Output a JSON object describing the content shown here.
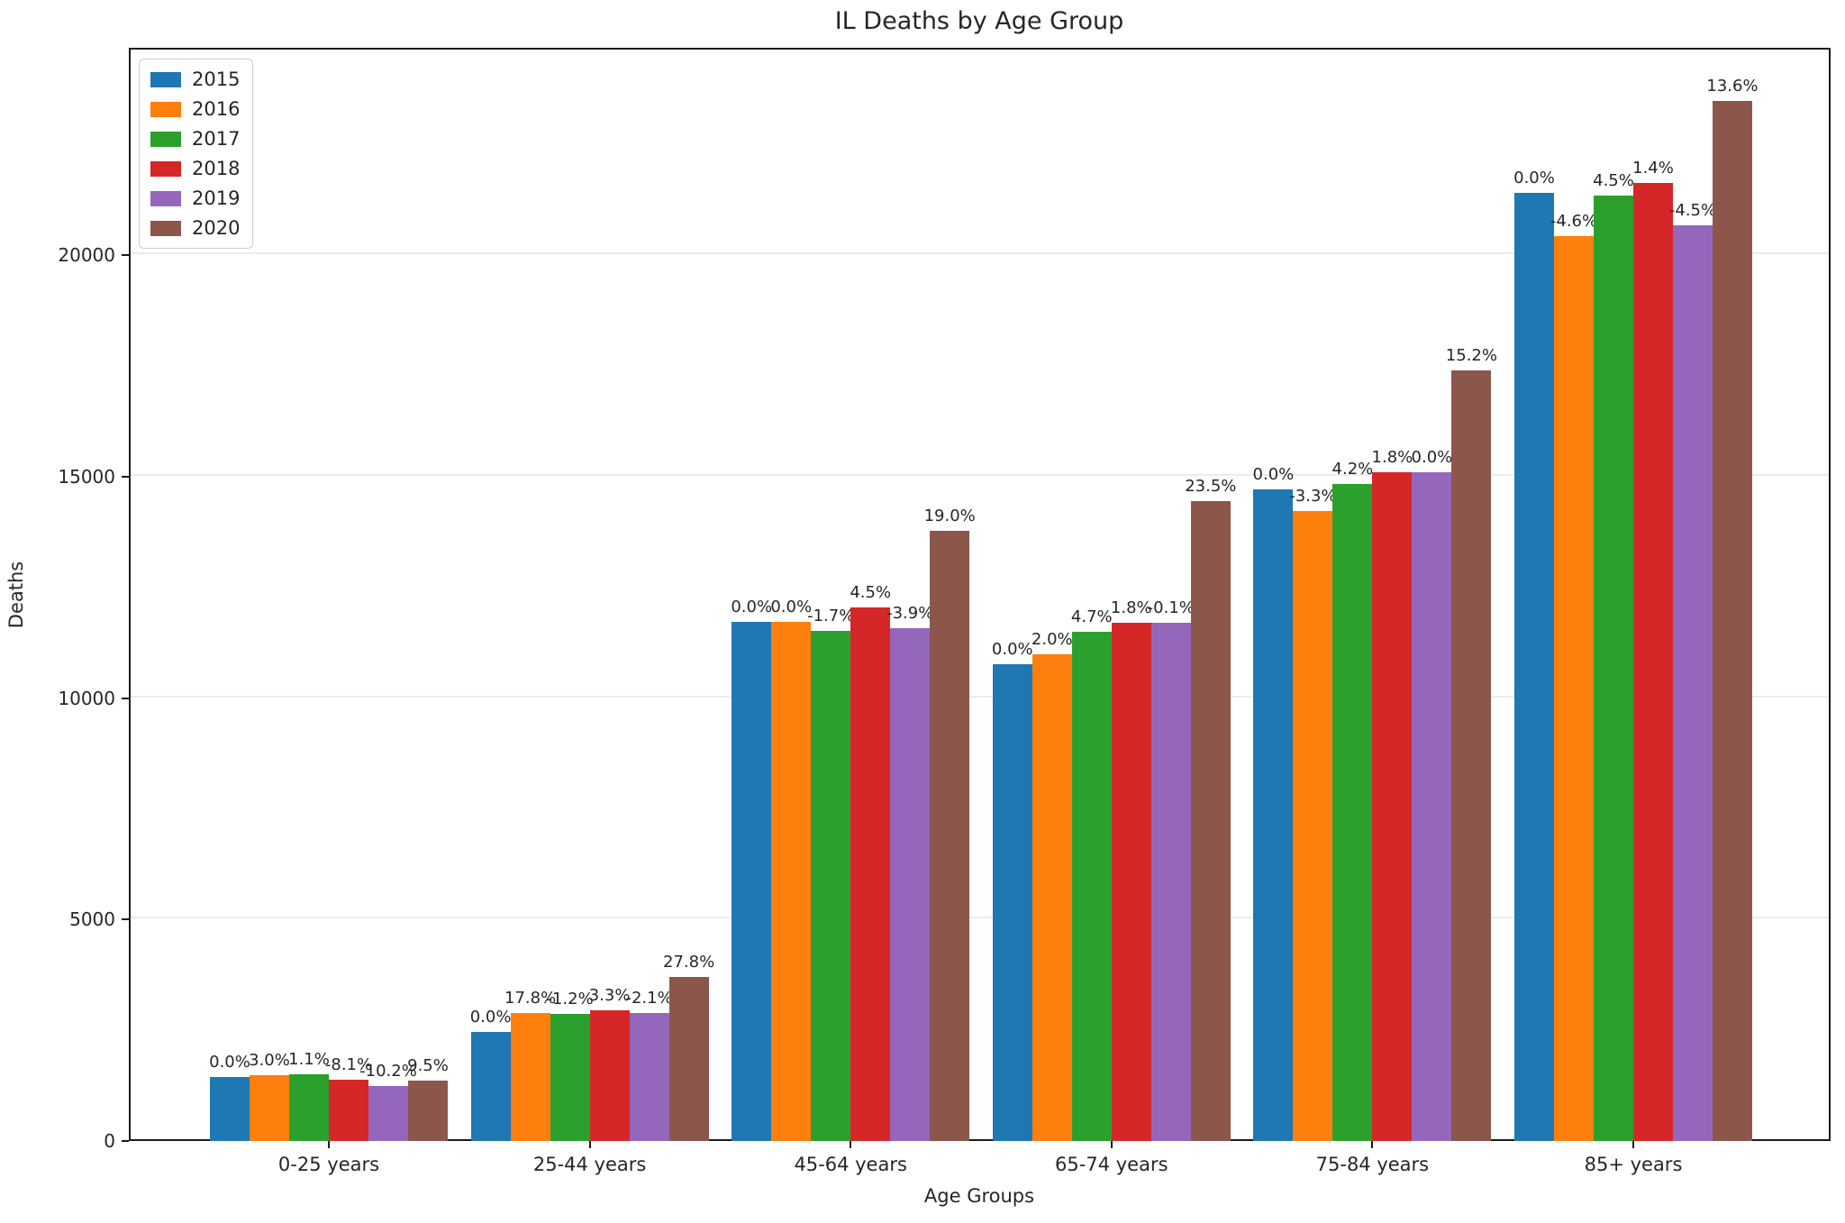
{
  "title": "IL Deaths by Age Group",
  "chart_data": {
    "type": "bar",
    "title": "IL Deaths by Age Group",
    "xlabel": "Age Groups",
    "ylabel": "Deaths",
    "categories": [
      "0-25 years",
      "25-44 years",
      "45-64 years",
      "65-74 years",
      "75-84 years",
      "85+  years"
    ],
    "series": [
      {
        "name": "2015",
        "color": "#1f77b4",
        "values": [
          1440,
          2460,
          11722,
          10771,
          14720,
          21408
        ],
        "labels": [
          "0.0%",
          "0.0%",
          "0.0%",
          "0.0%",
          "0.0%",
          "0.0%"
        ]
      },
      {
        "name": "2016",
        "color": "#ff7f0e",
        "values": [
          1483,
          2898,
          11722,
          10986,
          14234,
          20423
        ],
        "labels": [
          "3.0%",
          "17.8%",
          "0.0%",
          "2.0%",
          "-3.3%",
          "-4.6%"
        ]
      },
      {
        "name": "2017",
        "color": "#2ca02c",
        "values": [
          1499,
          2863,
          11523,
          11502,
          14832,
          21342
        ],
        "labels": [
          "1.1%",
          "-1.2%",
          "-1.7%",
          "4.7%",
          "4.2%",
          "4.5%"
        ]
      },
      {
        "name": "2018",
        "color": "#d62728",
        "values": [
          1378,
          2958,
          12041,
          11709,
          15099,
          21641
        ],
        "labels": [
          "-8.1%",
          "3.3%",
          "4.5%",
          "1.8%",
          "1.8%",
          "1.4%"
        ]
      },
      {
        "name": "2019",
        "color": "#9467bd",
        "values": [
          1237,
          2896,
          11571,
          11697,
          15099,
          20667
        ],
        "labels": [
          "-10.2%",
          "-2.1%",
          "-3.9%",
          "-0.1%",
          "0.0%",
          "-4.5%"
        ]
      },
      {
        "name": "2020",
        "color": "#8c564b",
        "values": [
          1355,
          3701,
          13770,
          14447,
          17394,
          23478
        ],
        "labels": [
          "9.5%",
          "27.8%",
          "19.0%",
          "23.5%",
          "15.2%",
          "13.6%"
        ]
      }
    ],
    "yticks": [
      0,
      5000,
      10000,
      15000,
      20000
    ],
    "ylim": [
      0,
      24685
    ],
    "grid": true,
    "legend_position": "upper left",
    "axis_color": "#1a1a1a",
    "grid_color": "#ececec"
  }
}
